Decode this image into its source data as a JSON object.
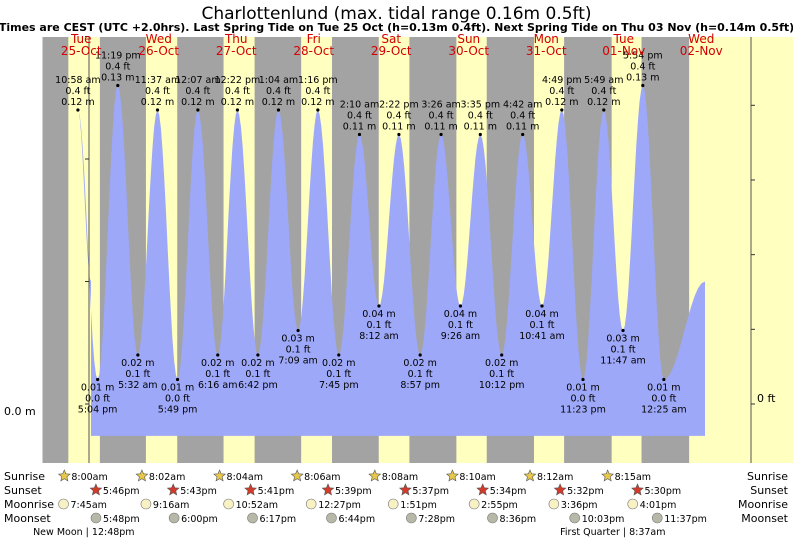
{
  "chart_data": {
    "type": "area",
    "title": "Charlottenlund (max. tidal range 0.16m 0.5ft)",
    "subtitle": "Times are CEST (UTC +2.0hrs). Last Spring Tide on Tue 25 Oct (h=0.13m 0.4ft). Next Spring Tide on Thu 03 Nov (h=0.14m 0.5ft)",
    "left_axis_label": "0.0 m",
    "right_axis_label": "0 ft",
    "ylim": [
      -0.02,
      0.155
    ],
    "days": [
      {
        "name": "Tue",
        "date": "25-Oct"
      },
      {
        "name": "Wed",
        "date": "26-Oct"
      },
      {
        "name": "Thu",
        "date": "27-Oct"
      },
      {
        "name": "Fri",
        "date": "28-Oct"
      },
      {
        "name": "Sat",
        "date": "29-Oct"
      },
      {
        "name": "Sun",
        "date": "30-Oct"
      },
      {
        "name": "Mon",
        "date": "31-Oct"
      },
      {
        "name": "Tue",
        "date": "01-Nov"
      },
      {
        "name": "Wed",
        "date": "02-Nov"
      }
    ],
    "daylight": [
      {
        "day": 0,
        "sunrise": 8.0,
        "sunset": 17.77
      },
      {
        "day": 1,
        "sunrise": 8.03,
        "sunset": 17.72
      },
      {
        "day": 2,
        "sunrise": 8.07,
        "sunset": 17.68
      },
      {
        "day": 3,
        "sunrise": 8.1,
        "sunset": 17.65
      },
      {
        "day": 4,
        "sunrise": 8.13,
        "sunset": 17.62
      },
      {
        "day": 5,
        "sunrise": 8.17,
        "sunset": 17.57
      },
      {
        "day": 6,
        "sunrise": 8.2,
        "sunset": 17.53
      },
      {
        "day": 7,
        "sunrise": 8.25,
        "sunset": 17.5
      },
      {
        "day": 8,
        "sunrise": 8.25,
        "sunset": 17.5
      }
    ],
    "tides": [
      {
        "day": 0,
        "hour": 10.97,
        "time": "10:58 am",
        "ft": "0.4 ft",
        "m": "0.12 m",
        "h": 0.12,
        "type": "high"
      },
      {
        "day": 0,
        "hour": 17.07,
        "time": "5:04 pm",
        "ft": "0.0 ft",
        "m": "0.01 m",
        "h": 0.01,
        "type": "low"
      },
      {
        "day": 0,
        "hour": 23.32,
        "time": "11:19 pm",
        "ft": "0.4 ft",
        "m": "0.13 m",
        "h": 0.13,
        "type": "high"
      },
      {
        "day": 1,
        "hour": 5.53,
        "time": "5:32 am",
        "ft": "0.1 ft",
        "m": "0.02 m",
        "h": 0.02,
        "type": "low"
      },
      {
        "day": 1,
        "hour": 11.62,
        "time": "11:37 am",
        "ft": "0.4 ft",
        "m": "0.12 m",
        "h": 0.12,
        "type": "high"
      },
      {
        "day": 1,
        "hour": 17.82,
        "time": "5:49 pm",
        "ft": "0.0 ft",
        "m": "0.01 m",
        "h": 0.01,
        "type": "low"
      },
      {
        "day": 2,
        "hour": 0.12,
        "time": "12:07 am",
        "ft": "0.4 ft",
        "m": "0.12 m",
        "h": 0.12,
        "type": "high"
      },
      {
        "day": 2,
        "hour": 6.27,
        "time": "6:16 am",
        "ft": "0.1 ft",
        "m": "0.02 m",
        "h": 0.02,
        "type": "low"
      },
      {
        "day": 2,
        "hour": 12.37,
        "time": "12:22 pm",
        "ft": "0.4 ft",
        "m": "0.12 m",
        "h": 0.12,
        "type": "high"
      },
      {
        "day": 2,
        "hour": 18.7,
        "time": "6:42 pm",
        "ft": "0.1 ft",
        "m": "0.02 m",
        "h": 0.02,
        "type": "low"
      },
      {
        "day": 3,
        "hour": 1.07,
        "time": "1:04 am",
        "ft": "0.4 ft",
        "m": "0.12 m",
        "h": 0.12,
        "type": "high"
      },
      {
        "day": 3,
        "hour": 7.15,
        "time": "7:09 am",
        "ft": "0.1 ft",
        "m": "0.03 m",
        "h": 0.03,
        "type": "low"
      },
      {
        "day": 3,
        "hour": 13.27,
        "time": "1:16 pm",
        "ft": "0.4 ft",
        "m": "0.12 m",
        "h": 0.12,
        "type": "high"
      },
      {
        "day": 3,
        "hour": 19.75,
        "time": "7:45 pm",
        "ft": "0.1 ft",
        "m": "0.02 m",
        "h": 0.02,
        "type": "low"
      },
      {
        "day": 4,
        "hour": 2.17,
        "time": "2:10 am",
        "ft": "0.4 ft",
        "m": "0.11 m",
        "h": 0.11,
        "type": "high"
      },
      {
        "day": 4,
        "hour": 8.2,
        "time": "8:12 am",
        "ft": "0.1 ft",
        "m": "0.04 m",
        "h": 0.04,
        "type": "low"
      },
      {
        "day": 4,
        "hour": 14.37,
        "time": "2:22 pm",
        "ft": "0.4 ft",
        "m": "0.11 m",
        "h": 0.11,
        "type": "high"
      },
      {
        "day": 4,
        "hour": 20.95,
        "time": "8:57 pm",
        "ft": "0.1 ft",
        "m": "0.02 m",
        "h": 0.02,
        "type": "low"
      },
      {
        "day": 5,
        "hour": 3.43,
        "time": "3:26 am",
        "ft": "0.4 ft",
        "m": "0.11 m",
        "h": 0.11,
        "type": "high"
      },
      {
        "day": 5,
        "hour": 9.43,
        "time": "9:26 am",
        "ft": "0.1 ft",
        "m": "0.04 m",
        "h": 0.04,
        "type": "low"
      },
      {
        "day": 5,
        "hour": 15.58,
        "time": "3:35 pm",
        "ft": "0.4 ft",
        "m": "0.11 m",
        "h": 0.11,
        "type": "high"
      },
      {
        "day": 5,
        "hour": 22.2,
        "time": "10:12 pm",
        "ft": "0.1 ft",
        "m": "0.02 m",
        "h": 0.02,
        "type": "low"
      },
      {
        "day": 6,
        "hour": 4.7,
        "time": "4:42 am",
        "ft": "0.4 ft",
        "m": "0.11 m",
        "h": 0.11,
        "type": "high"
      },
      {
        "day": 6,
        "hour": 10.68,
        "time": "10:41 am",
        "ft": "0.1 ft",
        "m": "0.04 m",
        "h": 0.04,
        "type": "low"
      },
      {
        "day": 6,
        "hour": 16.82,
        "time": "4:49 pm",
        "ft": "0.4 ft",
        "m": "0.12 m",
        "h": 0.12,
        "type": "high"
      },
      {
        "day": 6,
        "hour": 23.38,
        "time": "11:23 pm",
        "ft": "0.0 ft",
        "m": "0.01 m",
        "h": 0.01,
        "type": "low"
      },
      {
        "day": 7,
        "hour": 5.82,
        "time": "5:49 am",
        "ft": "0.4 ft",
        "m": "0.12 m",
        "h": 0.12,
        "type": "high"
      },
      {
        "day": 7,
        "hour": 11.78,
        "time": "11:47 am",
        "ft": "0.1 ft",
        "m": "0.03 m",
        "h": 0.03,
        "type": "low"
      },
      {
        "day": 7,
        "hour": 17.9,
        "time": "5:54 pm",
        "ft": "0.4 ft",
        "m": "0.13 m",
        "h": 0.13,
        "type": "high"
      },
      {
        "day": 8,
        "hour": 0.42,
        "time": "12:25 am",
        "ft": "0.0 ft",
        "m": "0.01 m",
        "h": 0.01,
        "type": "low"
      }
    ],
    "rows": {
      "sunrise": "Sunrise",
      "sunset": "Sunset",
      "moonrise": "Moonrise",
      "moonset": "Moonset"
    },
    "sunrise": [
      {
        "day": 0,
        "hour": 8.0,
        "time": "8:00am"
      },
      {
        "day": 1,
        "hour": 8.03,
        "time": "8:02am"
      },
      {
        "day": 2,
        "hour": 8.07,
        "time": "8:04am"
      },
      {
        "day": 3,
        "hour": 8.1,
        "time": "8:06am"
      },
      {
        "day": 4,
        "hour": 8.13,
        "time": "8:08am"
      },
      {
        "day": 5,
        "hour": 8.17,
        "time": "8:10am"
      },
      {
        "day": 6,
        "hour": 8.2,
        "time": "8:12am"
      },
      {
        "day": 7,
        "hour": 8.25,
        "time": "8:15am"
      }
    ],
    "sunset": [
      {
        "day": 0,
        "hour": 17.77,
        "time": "5:46pm"
      },
      {
        "day": 1,
        "hour": 17.72,
        "time": "5:43pm"
      },
      {
        "day": 2,
        "hour": 17.68,
        "time": "5:41pm"
      },
      {
        "day": 3,
        "hour": 17.65,
        "time": "5:39pm"
      },
      {
        "day": 4,
        "hour": 17.62,
        "time": "5:37pm"
      },
      {
        "day": 5,
        "hour": 17.57,
        "time": "5:34pm"
      },
      {
        "day": 6,
        "hour": 17.53,
        "time": "5:32pm"
      },
      {
        "day": 7,
        "hour": 17.5,
        "time": "5:30pm"
      }
    ],
    "moonrise": [
      {
        "day": 0,
        "hour": 7.75,
        "time": "7:45am"
      },
      {
        "day": 1,
        "hour": 9.27,
        "time": "9:16am"
      },
      {
        "day": 2,
        "hour": 10.87,
        "time": "10:52am"
      },
      {
        "day": 3,
        "hour": 12.45,
        "time": "12:27pm"
      },
      {
        "day": 4,
        "hour": 13.85,
        "time": "1:51pm"
      },
      {
        "day": 5,
        "hour": 14.92,
        "time": "2:55pm"
      },
      {
        "day": 6,
        "hour": 15.6,
        "time": "3:36pm"
      },
      {
        "day": 7,
        "hour": 16.02,
        "time": "4:01pm"
      }
    ],
    "moonset": [
      {
        "day": 0,
        "hour": 17.8,
        "time": "5:48pm"
      },
      {
        "day": 1,
        "hour": 18.0,
        "time": "6:00pm"
      },
      {
        "day": 2,
        "hour": 18.28,
        "time": "6:17pm"
      },
      {
        "day": 3,
        "hour": 18.73,
        "time": "6:44pm"
      },
      {
        "day": 4,
        "hour": 19.47,
        "time": "7:28pm"
      },
      {
        "day": 5,
        "hour": 20.6,
        "time": "8:36pm"
      },
      {
        "day": 6,
        "hour": 22.05,
        "time": "10:03pm"
      },
      {
        "day": 7,
        "hour": 23.62,
        "time": "11:37pm"
      }
    ],
    "moon_phases": [
      {
        "label": "New Moon | 12:48pm",
        "day": 0,
        "hour": 12.8
      },
      {
        "label": "First Quarter | 8:37am",
        "day": 7,
        "hour": 8.62
      }
    ]
  },
  "colors": {
    "night": "#a3a3a3",
    "day": "#ffffc0",
    "water": "#9ea8f8",
    "day_text": "#d40000",
    "sun_marker": "#e8c84a",
    "sunset_marker": "#d33a2a",
    "moon_marker": "#f7f1c4",
    "moonset_marker": "#b8b8a8"
  }
}
